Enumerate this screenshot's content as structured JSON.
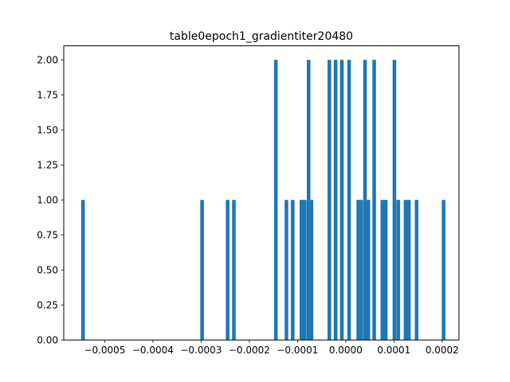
{
  "chart_data": {
    "type": "bar",
    "title": "table0epoch1_gradientiter20480",
    "xlabel": "",
    "ylabel": "",
    "bar_color": "#1f77b4",
    "xlim": [
      -0.000585,
      0.000235
    ],
    "ylim": [
      0,
      2.1
    ],
    "bin_width": 7.5e-06,
    "xticks": [
      -0.0005,
      -0.0004,
      -0.0003,
      -0.0002,
      -0.0001,
      0.0,
      0.0001,
      0.0002
    ],
    "xtick_labels": [
      "−0.0005",
      "−0.0004",
      "−0.0003",
      "−0.0002",
      "−0.0001",
      "0.0000",
      "0.0001",
      "0.0002"
    ],
    "yticks": [
      0,
      0.25,
      0.5,
      0.75,
      1.0,
      1.25,
      1.5,
      1.75,
      2.0
    ],
    "ytick_labels": [
      "0.00",
      "0.25",
      "0.50",
      "0.75",
      "1.00",
      "1.25",
      "1.50",
      "1.75",
      "2.00"
    ],
    "grid": false,
    "bars": [
      {
        "x": -0.000545,
        "value": 1
      },
      {
        "x": -0.000298,
        "value": 1
      },
      {
        "x": -0.000245,
        "value": 1
      },
      {
        "x": -0.000232,
        "value": 1
      },
      {
        "x": -0.000145,
        "value": 2
      },
      {
        "x": -0.000123,
        "value": 1
      },
      {
        "x": -0.00011,
        "value": 1
      },
      {
        "x": -9.2e-05,
        "value": 1
      },
      {
        "x": -8.5e-05,
        "value": 1
      },
      {
        "x": -7.7e-05,
        "value": 2
      },
      {
        "x": -7.1e-05,
        "value": 1
      },
      {
        "x": -3.4e-05,
        "value": 2
      },
      {
        "x": -2.1e-05,
        "value": 2
      },
      {
        "x": -8e-06,
        "value": 2
      },
      {
        "x": 7e-06,
        "value": 2
      },
      {
        "x": 2.6e-05,
        "value": 1
      },
      {
        "x": 3.2e-05,
        "value": 1
      },
      {
        "x": 4e-05,
        "value": 2
      },
      {
        "x": 4.7e-05,
        "value": 1
      },
      {
        "x": 5.9e-05,
        "value": 2
      },
      {
        "x": 7.6e-05,
        "value": 1
      },
      {
        "x": 8.3e-05,
        "value": 1
      },
      {
        "x": 0.000101,
        "value": 2
      },
      {
        "x": 0.000109,
        "value": 1
      },
      {
        "x": 0.000124,
        "value": 1
      },
      {
        "x": 0.000131,
        "value": 1
      },
      {
        "x": 0.000147,
        "value": 1
      },
      {
        "x": 0.000203,
        "value": 1
      }
    ]
  }
}
